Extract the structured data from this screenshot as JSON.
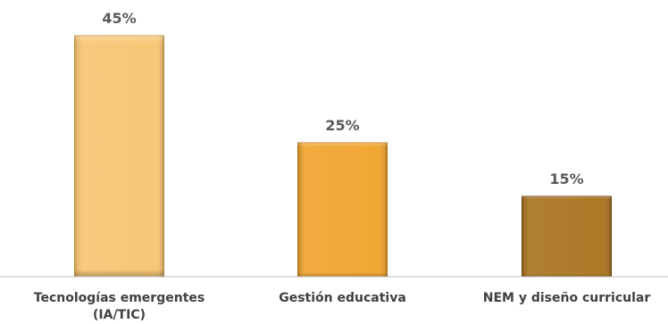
{
  "chart_data": {
    "type": "bar",
    "title": "",
    "xlabel": "",
    "ylabel": "",
    "categories": [
      [
        "Tecnologías emergentes",
        "(IA/TIC)"
      ],
      [
        "Gestión educativa"
      ],
      [
        "NEM y diseño curricular"
      ]
    ],
    "values": [
      45,
      25,
      15
    ],
    "value_labels": [
      "45%",
      "25%",
      "15%"
    ],
    "unit": "%",
    "ylim": [
      0,
      50
    ],
    "grid": false,
    "legend": "none",
    "bar_colors": [
      "#F8C470",
      "#F0A22A",
      "#A8711C"
    ],
    "bar_edge_colors": [
      "#C9943E",
      "#B87A14",
      "#6E4A10"
    ],
    "axis_color": "#BFBFBF"
  }
}
